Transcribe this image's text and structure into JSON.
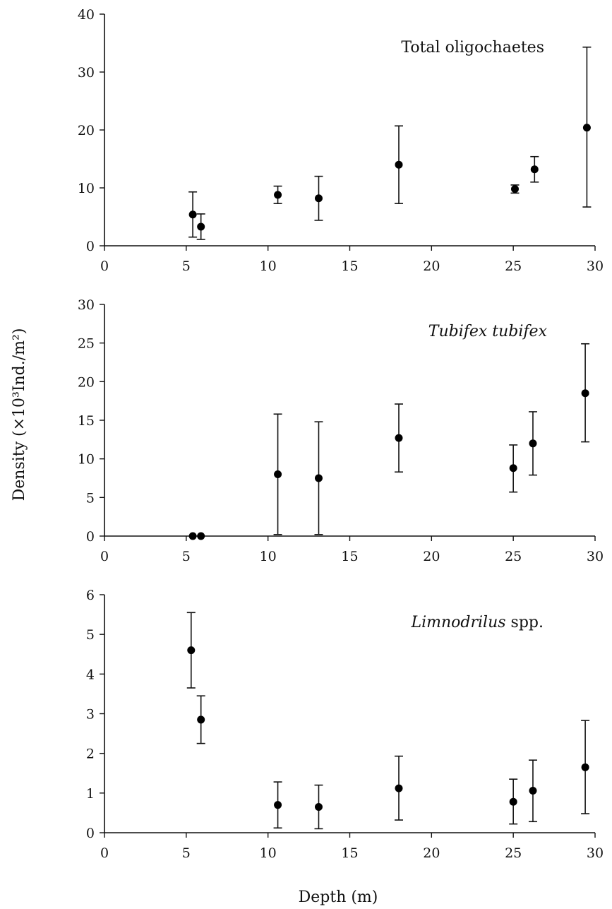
{
  "figure": {
    "ylabel": "Density (×10³Ind./m²)",
    "xlabel": "Depth (m)"
  },
  "chart_data": [
    {
      "type": "scatter",
      "title_parts": [
        {
          "text": "Total oligochaetes",
          "italic": false
        }
      ],
      "xlim": [
        0,
        30
      ],
      "ylim": [
        0,
        40
      ],
      "xticks": [
        0,
        5,
        10,
        15,
        20,
        25,
        30
      ],
      "yticks": [
        0,
        10,
        20,
        30,
        40
      ],
      "points": [
        {
          "x": 5.4,
          "y": 5.4,
          "lo": 1.5,
          "hi": 9.3
        },
        {
          "x": 5.9,
          "y": 3.3,
          "lo": 1.1,
          "hi": 5.5
        },
        {
          "x": 10.6,
          "y": 8.8,
          "lo": 7.3,
          "hi": 10.3
        },
        {
          "x": 13.1,
          "y": 8.2,
          "lo": 4.4,
          "hi": 12.0
        },
        {
          "x": 18.0,
          "y": 14.0,
          "lo": 7.3,
          "hi": 20.7
        },
        {
          "x": 25.1,
          "y": 9.8,
          "lo": 9.1,
          "hi": 10.5
        },
        {
          "x": 26.3,
          "y": 13.2,
          "lo": 11.0,
          "hi": 15.4
        },
        {
          "x": 29.5,
          "y": 20.4,
          "lo": 6.7,
          "hi": 34.3
        }
      ]
    },
    {
      "type": "scatter",
      "title_parts": [
        {
          "text": "Tubifex tubifex",
          "italic": true
        }
      ],
      "xlim": [
        0,
        30
      ],
      "ylim": [
        0,
        30
      ],
      "xticks": [
        0,
        5,
        10,
        15,
        20,
        25,
        30
      ],
      "yticks": [
        0,
        5,
        10,
        15,
        20,
        25,
        30
      ],
      "points": [
        {
          "x": 5.4,
          "y": 0.0,
          "lo": 0.0,
          "hi": 0.0
        },
        {
          "x": 5.9,
          "y": 0.0,
          "lo": 0.0,
          "hi": 0.0
        },
        {
          "x": 10.6,
          "y": 8.0,
          "lo": 0.2,
          "hi": 15.8
        },
        {
          "x": 13.1,
          "y": 7.5,
          "lo": 0.2,
          "hi": 14.8
        },
        {
          "x": 18.0,
          "y": 12.7,
          "lo": 8.3,
          "hi": 17.1
        },
        {
          "x": 25.0,
          "y": 8.8,
          "lo": 5.7,
          "hi": 11.8
        },
        {
          "x": 26.2,
          "y": 12.0,
          "lo": 7.9,
          "hi": 16.1
        },
        {
          "x": 29.4,
          "y": 18.5,
          "lo": 12.2,
          "hi": 24.9
        }
      ]
    },
    {
      "type": "scatter",
      "title_parts": [
        {
          "text": "Limnodrilus",
          "italic": true
        },
        {
          "text": " spp.",
          "italic": false
        }
      ],
      "xlim": [
        0,
        30
      ],
      "ylim": [
        0,
        6
      ],
      "xticks": [
        0,
        5,
        10,
        15,
        20,
        25,
        30
      ],
      "yticks": [
        0,
        1,
        2,
        3,
        4,
        5,
        6
      ],
      "points": [
        {
          "x": 5.3,
          "y": 4.6,
          "lo": 3.65,
          "hi": 5.55
        },
        {
          "x": 5.9,
          "y": 2.85,
          "lo": 2.25,
          "hi": 3.45
        },
        {
          "x": 10.6,
          "y": 0.7,
          "lo": 0.12,
          "hi": 1.28
        },
        {
          "x": 13.1,
          "y": 0.65,
          "lo": 0.1,
          "hi": 1.2
        },
        {
          "x": 18.0,
          "y": 1.12,
          "lo": 0.32,
          "hi": 1.93
        },
        {
          "x": 25.0,
          "y": 0.78,
          "lo": 0.22,
          "hi": 1.35
        },
        {
          "x": 26.2,
          "y": 1.06,
          "lo": 0.28,
          "hi": 1.83
        },
        {
          "x": 29.4,
          "y": 1.65,
          "lo": 0.48,
          "hi": 2.83
        }
      ]
    }
  ]
}
